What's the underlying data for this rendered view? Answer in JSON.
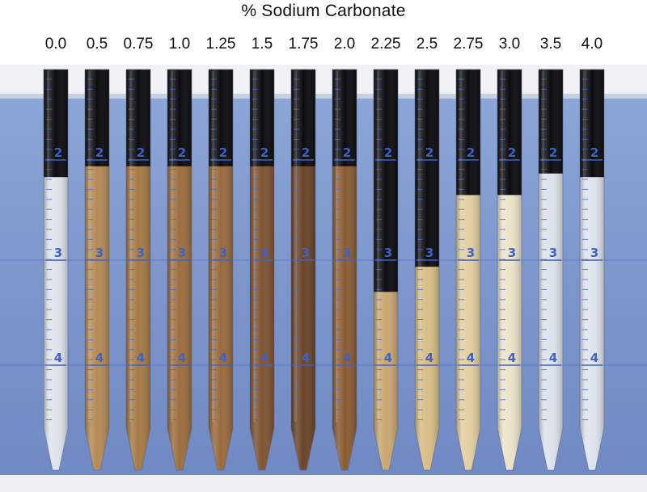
{
  "title": "% Sodium Carbonate",
  "concentrations": [
    "0.0",
    "0.5",
    "0.75",
    "1.0",
    "1.25",
    "1.5",
    "1.75",
    "2.0",
    "2.25",
    "2.5",
    "2.75",
    "3.0",
    "3.5",
    "4.0"
  ],
  "scale_marks": [
    "2",
    "3",
    "4"
  ],
  "tubes": [
    {
      "top": "#0c0c10",
      "bottom": "#dfe3ec",
      "split": 0.3
    },
    {
      "top": "#0c0c10",
      "bottom": "#b48a55",
      "split": 0.27
    },
    {
      "top": "#0c0c10",
      "bottom": "#a67a45",
      "split": 0.27
    },
    {
      "top": "#0c0c10",
      "bottom": "#9c6e3e",
      "split": 0.27
    },
    {
      "top": "#0c0c10",
      "bottom": "#986a3c",
      "split": 0.27
    },
    {
      "top": "#0c0c10",
      "bottom": "#7f5432",
      "split": 0.27
    },
    {
      "top": "#0c0c10",
      "bottom": "#6b4429",
      "split": 0.27
    },
    {
      "top": "#0c0c10",
      "bottom": "#8a5c34",
      "split": 0.27
    },
    {
      "top": "#0c0c10",
      "bottom": "#c9a771",
      "split": 0.62
    },
    {
      "top": "#0c0c10",
      "bottom": "#d8bd85",
      "split": 0.55
    },
    {
      "top": "#0c0c10",
      "bottom": "#e3cfa0",
      "split": 0.35
    },
    {
      "top": "#0c0c10",
      "bottom": "#ece4c9",
      "split": 0.35
    },
    {
      "top": "#0c0c10",
      "bottom": "#dde3ec",
      "split": 0.29
    },
    {
      "top": "#0c0c10",
      "bottom": "#dfe5ee",
      "split": 0.3
    }
  ],
  "colors": {
    "background": "#7d97cd",
    "scale": "#3e62c8",
    "label_text": "#111111"
  }
}
